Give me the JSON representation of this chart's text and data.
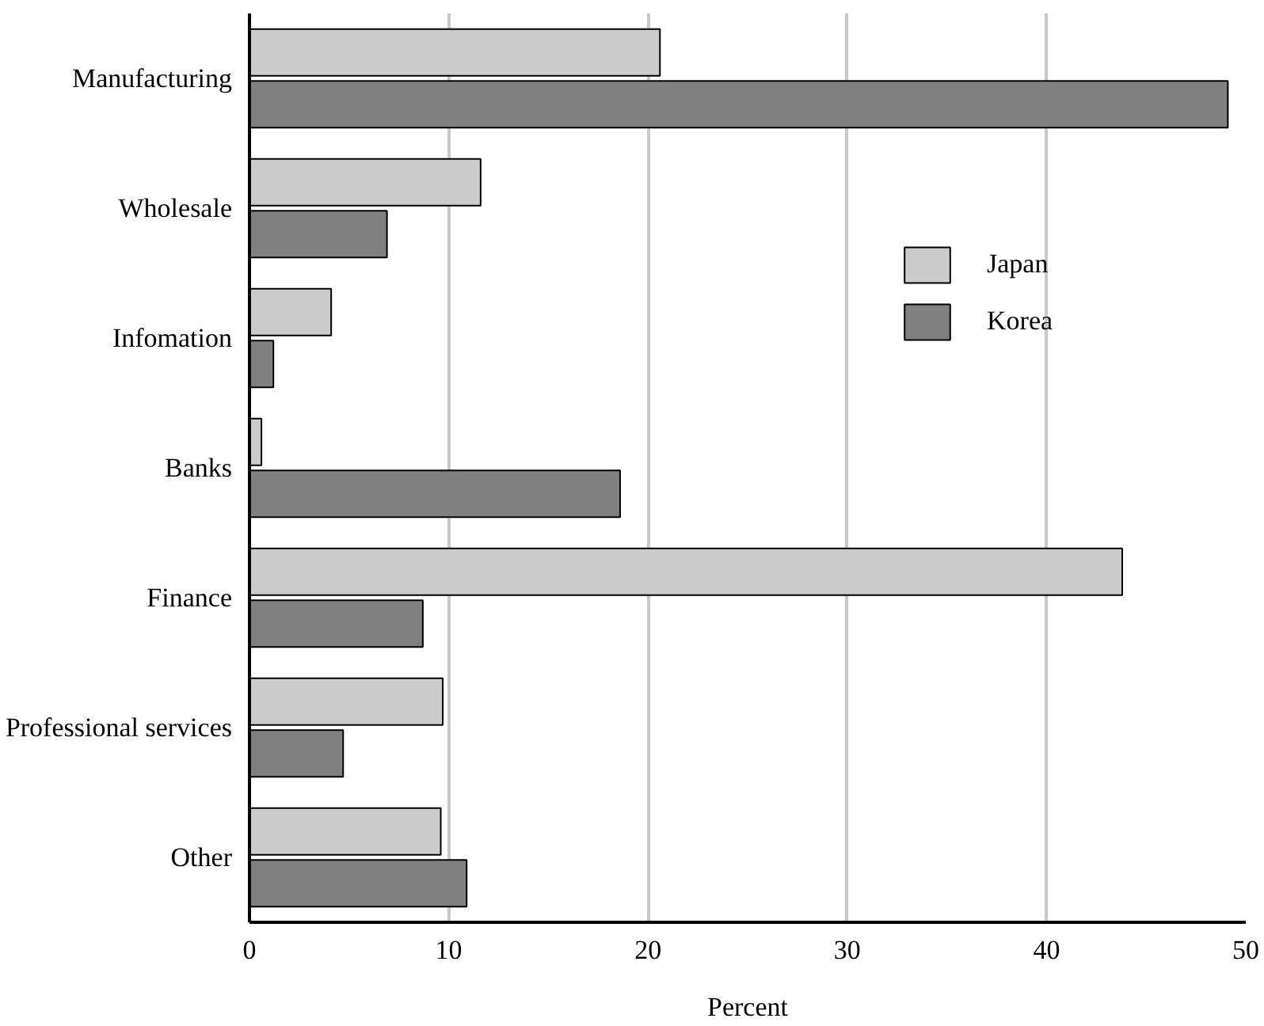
{
  "chart_data": {
    "type": "bar",
    "orientation": "horizontal",
    "xlabel": "Percent",
    "categories": [
      "Manufacturing",
      "Wholesale",
      "Infomation",
      "Banks",
      "Finance",
      "Professional services",
      "Other"
    ],
    "series": [
      {
        "name": "Japan",
        "color": "#cccccc",
        "values": [
          20.6,
          11.6,
          4.1,
          0.6,
          43.8,
          9.7,
          9.6
        ]
      },
      {
        "name": "Korea",
        "color": "#808080",
        "values": [
          49.1,
          6.9,
          1.2,
          18.6,
          8.7,
          4.7,
          10.9
        ]
      }
    ],
    "xlim": [
      0,
      50
    ],
    "xticks": [
      0,
      10,
      20,
      30,
      40,
      50
    ],
    "grid": "x",
    "legend": "top right"
  }
}
